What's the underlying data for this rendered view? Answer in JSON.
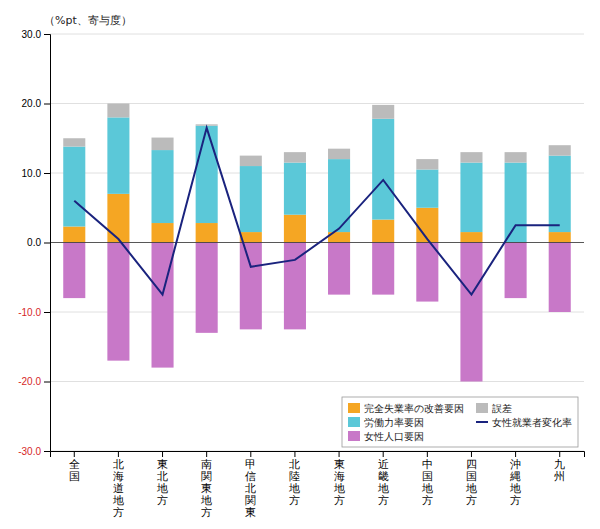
{
  "chart_data": {
    "type": "bar",
    "stacked": true,
    "grid": true,
    "legend": "lower right",
    "ylabel": "（%pt、寄与度）",
    "categories": [
      "全\n国",
      "北\n海\n道\n地\n方",
      "東\n北\n地\n方",
      "南\n関\n東\n地\n方",
      "甲\n信\n北\n関\n東",
      "北\n陸\n地\n方",
      "東\n海\n地\n方",
      "近\n畿\n地\n方",
      "中\n国\n地\n方",
      "四\n国\n地\n方",
      "沖\n縄\n地\n方",
      "九\n州"
    ],
    "series": [
      {
        "name": "完全失業率の改善要因",
        "type": "bar",
        "color": "#F5A623",
        "values": [
          2.3,
          7.0,
          2.8,
          2.8,
          1.5,
          4.0,
          1.5,
          3.3,
          5.0,
          1.5,
          0.0,
          1.5
        ]
      },
      {
        "name": "労働力率要因",
        "type": "bar",
        "color": "#5BC8D8",
        "values": [
          11.5,
          11.0,
          10.5,
          14.0,
          9.5,
          7.5,
          10.5,
          14.5,
          5.5,
          10.0,
          11.5,
          11.0
        ]
      },
      {
        "name": "女性人口要因",
        "type": "bar",
        "color": "#C878C8",
        "values": [
          -8.0,
          -17.0,
          -18.0,
          -13.0,
          -12.5,
          -12.5,
          -7.5,
          -7.5,
          -8.5,
          -20.0,
          -8.0,
          -10.0
        ]
      },
      {
        "name": "誤差",
        "type": "bar",
        "color": "#BBBBBB",
        "values": [
          1.2,
          2.0,
          1.8,
          0.2,
          1.5,
          1.5,
          1.5,
          2.0,
          1.5,
          1.5,
          1.5,
          1.5
        ]
      },
      {
        "name": "女性就業者変化率",
        "type": "line",
        "color": "#1A237E",
        "values": [
          6.0,
          0.5,
          -7.5,
          16.5,
          -3.5,
          -2.5,
          2.0,
          9.0,
          0.5,
          -7.5,
          2.5,
          2.5
        ]
      }
    ],
    "ylim": [
      -30.0,
      30.0
    ],
    "yticks": [
      {
        "value": -30.0,
        "label": "-30.0"
      },
      {
        "value": -20.0,
        "label": "-20.0"
      },
      {
        "value": -10.0,
        "label": "-10.0"
      },
      {
        "value": 0.0,
        "label": "0.0"
      },
      {
        "value": 10.0,
        "label": "10.0"
      },
      {
        "value": 20.0,
        "label": "20.0"
      },
      {
        "value": 30.0,
        "label": "30.0"
      }
    ]
  }
}
